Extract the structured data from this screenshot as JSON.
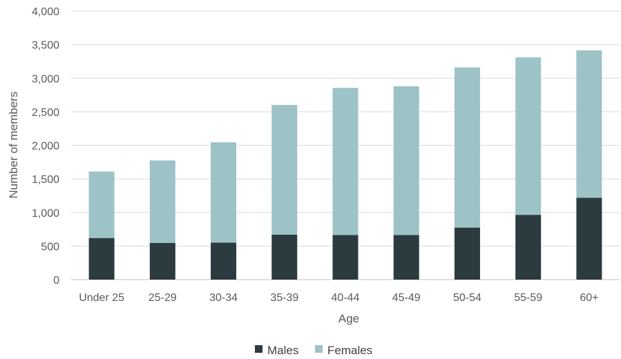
{
  "chart_data": {
    "type": "bar",
    "stacked": true,
    "categories": [
      "Under 25",
      "25-29",
      "30-34",
      "35-39",
      "40-44",
      "45-49",
      "50-54",
      "55-59",
      "60+"
    ],
    "series": [
      {
        "name": "Males",
        "values": [
          620,
          545,
          550,
          670,
          665,
          665,
          775,
          965,
          1220
        ],
        "color": "#2b3b40"
      },
      {
        "name": "Females",
        "values": [
          990,
          1230,
          1495,
          1930,
          2190,
          2215,
          2385,
          2345,
          2195
        ],
        "color": "#9dc3c6"
      }
    ],
    "xlabel": "Age",
    "ylabel": "Number of members",
    "ylim": [
      0,
      4000
    ],
    "yticks": [
      0,
      500,
      1000,
      1500,
      2000,
      2500,
      3000,
      3500,
      4000
    ],
    "ytick_labels": [
      "0",
      "500",
      "1,000",
      "1,500",
      "2,000",
      "2,500",
      "3,000",
      "3,500",
      "4,000"
    ],
    "grid": true,
    "legend_position": "bottom"
  }
}
